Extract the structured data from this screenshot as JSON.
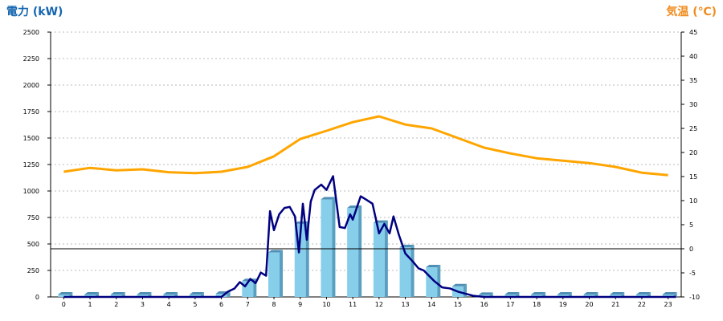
{
  "chart_data": {
    "type": "bar",
    "left_axis_label": "電力 (kW)",
    "right_axis_label": "気温 (℃)",
    "categories": [
      "0",
      "1",
      "2",
      "3",
      "4",
      "5",
      "6",
      "7",
      "8",
      "9",
      "10",
      "11",
      "12",
      "13",
      "14",
      "15",
      "16",
      "17",
      "18",
      "19",
      "20",
      "21",
      "22",
      "23"
    ],
    "y_left": {
      "min": 0,
      "max": 2500,
      "ticks": [
        0,
        250,
        500,
        750,
        1000,
        1250,
        1500,
        1750,
        2000,
        2250,
        2500
      ]
    },
    "y_right": {
      "min": -10,
      "max": 45,
      "ticks": [
        -10,
        -5,
        0,
        5,
        10,
        15,
        20,
        25,
        30,
        35,
        40,
        45
      ]
    },
    "grid": true,
    "series": [
      {
        "kind": "bar",
        "axis": "left",
        "color": "#87ceeb",
        "values": [
          0,
          0,
          0,
          0,
          0,
          0,
          30,
          150,
          420,
          690,
          920,
          840,
          700,
          470,
          280,
          100,
          20,
          0,
          0,
          0,
          0,
          0,
          0,
          0
        ]
      },
      {
        "kind": "line",
        "axis": "left",
        "color": "#000080",
        "points": [
          [
            0,
            0
          ],
          [
            6,
            0
          ],
          [
            6.25,
            50
          ],
          [
            6.5,
            80
          ],
          [
            6.7,
            140
          ],
          [
            6.9,
            100
          ],
          [
            7.1,
            170
          ],
          [
            7.3,
            130
          ],
          [
            7.5,
            230
          ],
          [
            7.7,
            200
          ],
          [
            7.85,
            810
          ],
          [
            8.0,
            630
          ],
          [
            8.2,
            780
          ],
          [
            8.4,
            840
          ],
          [
            8.6,
            850
          ],
          [
            8.8,
            760
          ],
          [
            8.95,
            420
          ],
          [
            9.1,
            880
          ],
          [
            9.25,
            540
          ],
          [
            9.4,
            900
          ],
          [
            9.55,
            1010
          ],
          [
            9.8,
            1060
          ],
          [
            10.0,
            1010
          ],
          [
            10.25,
            1140
          ],
          [
            10.5,
            660
          ],
          [
            10.7,
            650
          ],
          [
            10.9,
            780
          ],
          [
            11.0,
            730
          ],
          [
            11.3,
            950
          ],
          [
            11.5,
            920
          ],
          [
            11.75,
            880
          ],
          [
            12.0,
            600
          ],
          [
            12.2,
            690
          ],
          [
            12.4,
            600
          ],
          [
            12.55,
            760
          ],
          [
            12.75,
            590
          ],
          [
            13.0,
            410
          ],
          [
            13.3,
            330
          ],
          [
            13.5,
            270
          ],
          [
            13.7,
            250
          ],
          [
            13.9,
            200
          ],
          [
            14.1,
            150
          ],
          [
            14.4,
            90
          ],
          [
            14.7,
            80
          ],
          [
            15.0,
            50
          ],
          [
            15.3,
            30
          ],
          [
            15.6,
            10
          ],
          [
            16,
            0
          ],
          [
            23.3,
            0
          ]
        ]
      },
      {
        "kind": "line",
        "axis": "right",
        "color": "#ffa500",
        "values": [
          16.0,
          16.8,
          16.3,
          16.5,
          15.9,
          15.7,
          16.0,
          17.0,
          19.2,
          22.8,
          24.5,
          26.3,
          27.5,
          25.8,
          25.0,
          23.0,
          21.0,
          19.8,
          18.8,
          18.3,
          17.8,
          17.0,
          15.8,
          15.3
        ]
      }
    ]
  }
}
